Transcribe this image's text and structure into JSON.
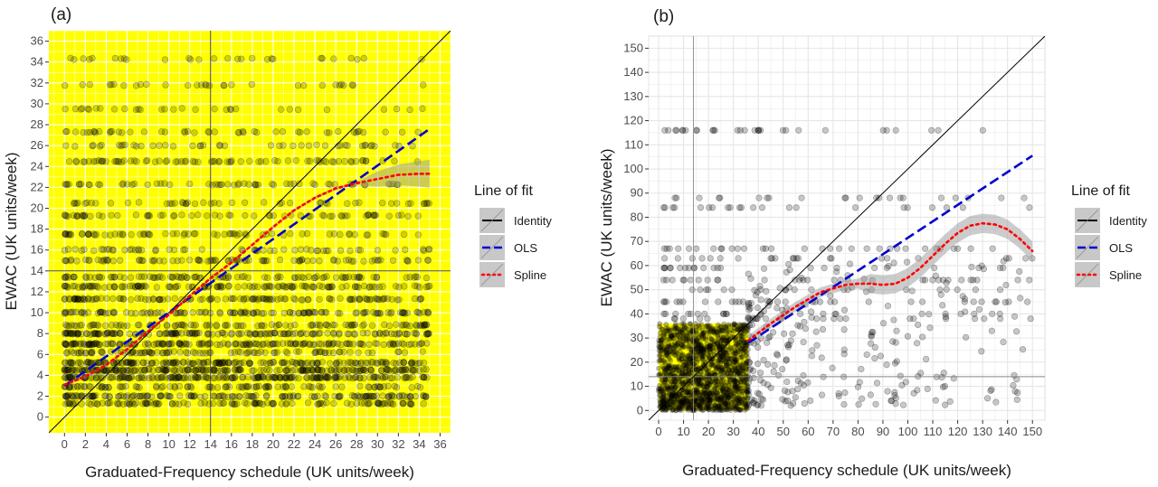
{
  "chart_data": [
    {
      "panel_label": "(a)",
      "type": "scatter",
      "xlabel": "Graduated-Frequency schedule (UK units/week)",
      "ylabel": "EWAC (UK units/week)",
      "xlim": [
        -1.5,
        37
      ],
      "ylim": [
        -1.5,
        37
      ],
      "x_ticks": [
        0,
        2,
        4,
        6,
        8,
        10,
        12,
        14,
        16,
        18,
        20,
        22,
        24,
        26,
        28,
        30,
        32,
        34,
        36
      ],
      "y_ticks": [
        0,
        2,
        4,
        6,
        8,
        10,
        12,
        14,
        16,
        18,
        20,
        22,
        24,
        26,
        28,
        30,
        32,
        34,
        36
      ],
      "background": "#ffff00",
      "grid": true,
      "reference_lines": {
        "x": 14,
        "y": 14
      },
      "point_cloud": {
        "x_range": [
          0,
          35
        ],
        "y_levels": [
          1.3,
          2.0,
          2.9,
          3.8,
          4.5,
          5.2,
          6.2,
          7.0,
          8.0,
          8.8,
          10.0,
          11.3,
          12.5,
          13.4,
          15.0,
          16.0,
          17.5,
          19.3,
          20.5,
          22.3,
          24.5,
          26.0,
          27.3,
          29.5,
          31.8,
          34.3
        ],
        "y_level_weights": [
          8,
          9,
          6,
          12,
          12,
          10,
          6,
          12,
          10,
          6,
          8,
          7,
          8,
          5,
          5,
          4,
          4,
          5,
          3,
          4,
          4,
          3,
          3,
          2,
          2,
          2
        ],
        "n_points": 2600,
        "color": "#000000",
        "opacity": 0.18
      },
      "series": [
        {
          "name": "Identity",
          "color": "#000000",
          "style": "solid",
          "x": [
            -1.5,
            37
          ],
          "y": [
            -1.5,
            37
          ]
        },
        {
          "name": "OLS",
          "color": "#0000cc",
          "style": "dashed",
          "x": [
            0,
            35
          ],
          "y": [
            3.0,
            27.6
          ]
        },
        {
          "name": "Spline",
          "color": "#ff0000",
          "style": "dotted",
          "x": [
            0,
            2,
            4,
            6,
            8,
            10,
            12,
            14,
            16,
            18,
            20,
            22,
            24,
            26,
            28,
            30,
            32,
            34,
            35
          ],
          "y": [
            3.1,
            3.9,
            5.0,
            6.5,
            8.2,
            9.8,
            11.6,
            13.3,
            14.8,
            16.5,
            18.2,
            19.8,
            21.0,
            21.9,
            22.4,
            22.8,
            23.2,
            23.3,
            23.3
          ]
        }
      ],
      "legend": {
        "title": "Line of fit",
        "position": "right",
        "entries": [
          "Identity",
          "OLS",
          "Spline"
        ]
      }
    },
    {
      "panel_label": "(b)",
      "type": "scatter",
      "xlabel": "Graduated-Frequency schedule (UK units/week)",
      "ylabel": "EWAC (UK units/week)",
      "xlim": [
        -4,
        155
      ],
      "ylim": [
        -4,
        155
      ],
      "x_ticks": [
        0,
        10,
        20,
        30,
        40,
        50,
        60,
        70,
        80,
        90,
        100,
        110,
        120,
        130,
        140,
        150
      ],
      "y_ticks": [
        0,
        10,
        20,
        30,
        40,
        50,
        60,
        70,
        80,
        90,
        100,
        110,
        120,
        130,
        140,
        150
      ],
      "background": "#ffffff",
      "grid": true,
      "reference_lines": {
        "x": 14,
        "y": 14
      },
      "yellow_region": {
        "x": [
          0,
          36
        ],
        "y": [
          0,
          36
        ]
      },
      "point_cloud": {
        "dense_region": {
          "x": [
            0,
            36
          ],
          "y": [
            0,
            36
          ],
          "n_points": 1400
        },
        "sparse_points": 520,
        "y_levels_above_36": [
          38,
          40,
          45,
          50,
          54,
          59,
          63,
          67,
          84,
          88,
          116
        ],
        "color": "#000000",
        "opacity": 0.22
      },
      "series": [
        {
          "name": "Identity",
          "color": "#000000",
          "style": "solid",
          "x": [
            -4,
            155
          ],
          "y": [
            -4,
            155
          ]
        },
        {
          "name": "OLS",
          "color": "#0000cc",
          "style": "dashed",
          "x": [
            36,
            150
          ],
          "y": [
            28.0,
            105.5
          ]
        },
        {
          "name": "Spline",
          "color": "#ff0000",
          "style": "dotted",
          "x": [
            36,
            45,
            55,
            65,
            75,
            80,
            85,
            90,
            95,
            100,
            105,
            110,
            115,
            120,
            125,
            130,
            135,
            140,
            145,
            150
          ],
          "y": [
            29,
            36,
            43,
            49,
            52,
            52.5,
            52.5,
            52,
            52.5,
            55,
            59,
            64,
            69,
            73.5,
            76.5,
            77.5,
            77,
            75,
            71,
            66
          ]
        }
      ],
      "legend": {
        "title": "Line of fit",
        "position": "right",
        "entries": [
          "Identity",
          "OLS",
          "Spline"
        ]
      }
    }
  ]
}
